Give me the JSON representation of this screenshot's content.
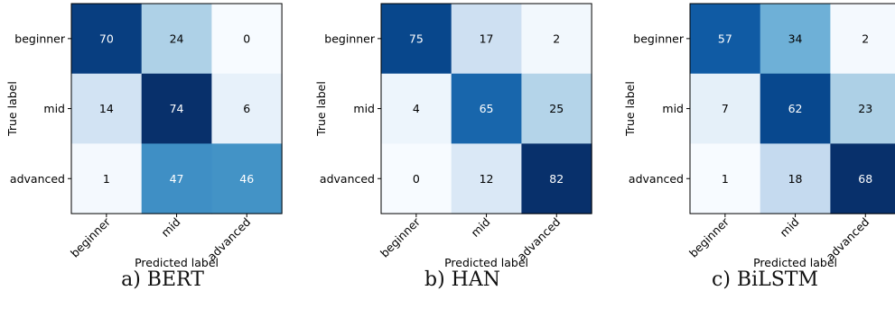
{
  "chart_data": [
    {
      "type": "heatmap",
      "caption": "a) BERT",
      "xlabel": "Predicted label",
      "ylabel": "True label",
      "x_categories": [
        "beginner",
        "mid",
        "advanced"
      ],
      "y_categories": [
        "beginner",
        "mid",
        "advanced"
      ],
      "values": [
        [
          70,
          24,
          0
        ],
        [
          14,
          74,
          6
        ],
        [
          1,
          47,
          46
        ]
      ],
      "colormap": "Blues",
      "grid": false
    },
    {
      "type": "heatmap",
      "caption": "b) HAN",
      "xlabel": "Predicted label",
      "ylabel": "True label",
      "x_categories": [
        "beginner",
        "mid",
        "advanced"
      ],
      "y_categories": [
        "beginner",
        "mid",
        "advanced"
      ],
      "values": [
        [
          75,
          17,
          2
        ],
        [
          4,
          65,
          25
        ],
        [
          0,
          12,
          82
        ]
      ],
      "colormap": "Blues",
      "grid": false
    },
    {
      "type": "heatmap",
      "caption": "c) BiLSTM",
      "xlabel": "Predicted label",
      "ylabel": "True label",
      "x_categories": [
        "beginner",
        "mid",
        "advanced"
      ],
      "y_categories": [
        "beginner",
        "mid",
        "advanced"
      ],
      "values": [
        [
          57,
          34,
          2
        ],
        [
          7,
          62,
          23
        ],
        [
          1,
          18,
          68
        ]
      ],
      "colormap": "Blues",
      "grid": false
    }
  ]
}
